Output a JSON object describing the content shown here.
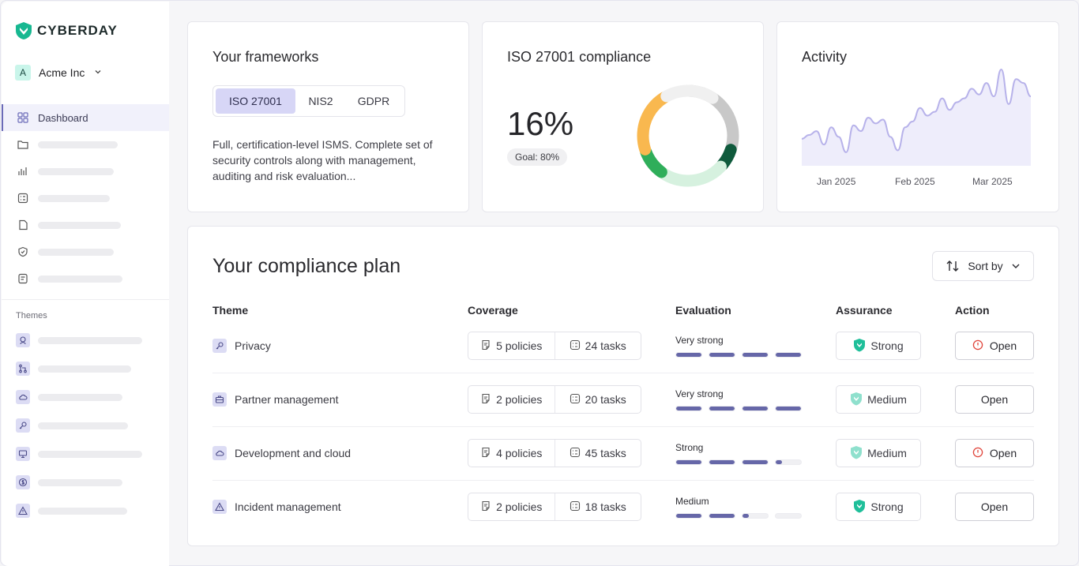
{
  "brand": {
    "name": "CYBERDAY"
  },
  "org": {
    "initial": "A",
    "name": "Acme Inc"
  },
  "sidebar": {
    "active_label": "Dashboard",
    "nav_icons": [
      "folder-icon",
      "bar-chart-icon",
      "checklist-icon",
      "file-icon",
      "shield-icon",
      "document-icon"
    ],
    "themes_label": "Themes",
    "theme_icons": [
      "fingerprint-icon",
      "git-branch-icon",
      "cloud-icon",
      "key-icon",
      "monitor-icon",
      "dollar-icon",
      "alert-icon"
    ]
  },
  "frameworks": {
    "title": "Your frameworks",
    "tabs": [
      "ISO 27001",
      "NIS2",
      "GDPR"
    ],
    "active_tab": "ISO 27001",
    "description": "Full, certification-level ISMS. Complete set of security controls along with management, auditing and risk evaluation..."
  },
  "compliance": {
    "title": "ISO 27001 compliance",
    "percent_label": "16%",
    "goal_label": "Goal: 80%",
    "donut_segments": [
      {
        "value": 0.3,
        "color": "#c8c8c8"
      },
      {
        "value": 0.07,
        "color": "#0f5a3c"
      },
      {
        "value": 0.23,
        "color": "#d6f1df"
      },
      {
        "value": 0.1,
        "color": "#2fae5a"
      },
      {
        "value": 0.22,
        "color": "#f9b84f"
      },
      {
        "value": 0.18,
        "color": "#f0f0f0"
      }
    ]
  },
  "activity": {
    "title": "Activity",
    "months": [
      "Jan 2025",
      "Feb 2025",
      "Mar 2025"
    ],
    "series": [
      0.28,
      0.32,
      0.36,
      0.22,
      0.4,
      0.3,
      0.14,
      0.42,
      0.36,
      0.5,
      0.44,
      0.48,
      0.3,
      0.16,
      0.4,
      0.46,
      0.6,
      0.52,
      0.56,
      0.7,
      0.58,
      0.66,
      0.7,
      0.8,
      0.74,
      0.86,
      0.72,
      1.0,
      0.64,
      0.9,
      0.86,
      0.72
    ]
  },
  "plan": {
    "title": "Your compliance plan",
    "sort_label": "Sort by",
    "columns": {
      "theme": "Theme",
      "coverage": "Coverage",
      "evaluation": "Evaluation",
      "assurance": "Assurance",
      "action": "Action"
    },
    "rows": [
      {
        "theme": "Privacy",
        "icon": "key-icon",
        "policies": "5 policies",
        "tasks": "24 tasks",
        "evaluation": "Very strong",
        "eval_level": 4,
        "assurance": "Strong",
        "action": "Open",
        "alert": true
      },
      {
        "theme": "Partner management",
        "icon": "briefcase-icon",
        "policies": "2 policies",
        "tasks": "20 tasks",
        "evaluation": "Very strong",
        "eval_level": 4,
        "assurance": "Medium",
        "action": "Open",
        "alert": false
      },
      {
        "theme": "Development and cloud",
        "icon": "cloud-icon",
        "policies": "4 policies",
        "tasks": "45 tasks",
        "evaluation": "Strong",
        "eval_level": 3.25,
        "assurance": "Medium",
        "action": "Open",
        "alert": true
      },
      {
        "theme": "Incident management",
        "icon": "alert-icon",
        "policies": "2 policies",
        "tasks": "18 tasks",
        "evaluation": "Medium",
        "eval_level": 2.25,
        "assurance": "Strong",
        "action": "Open",
        "alert": false
      }
    ]
  }
}
